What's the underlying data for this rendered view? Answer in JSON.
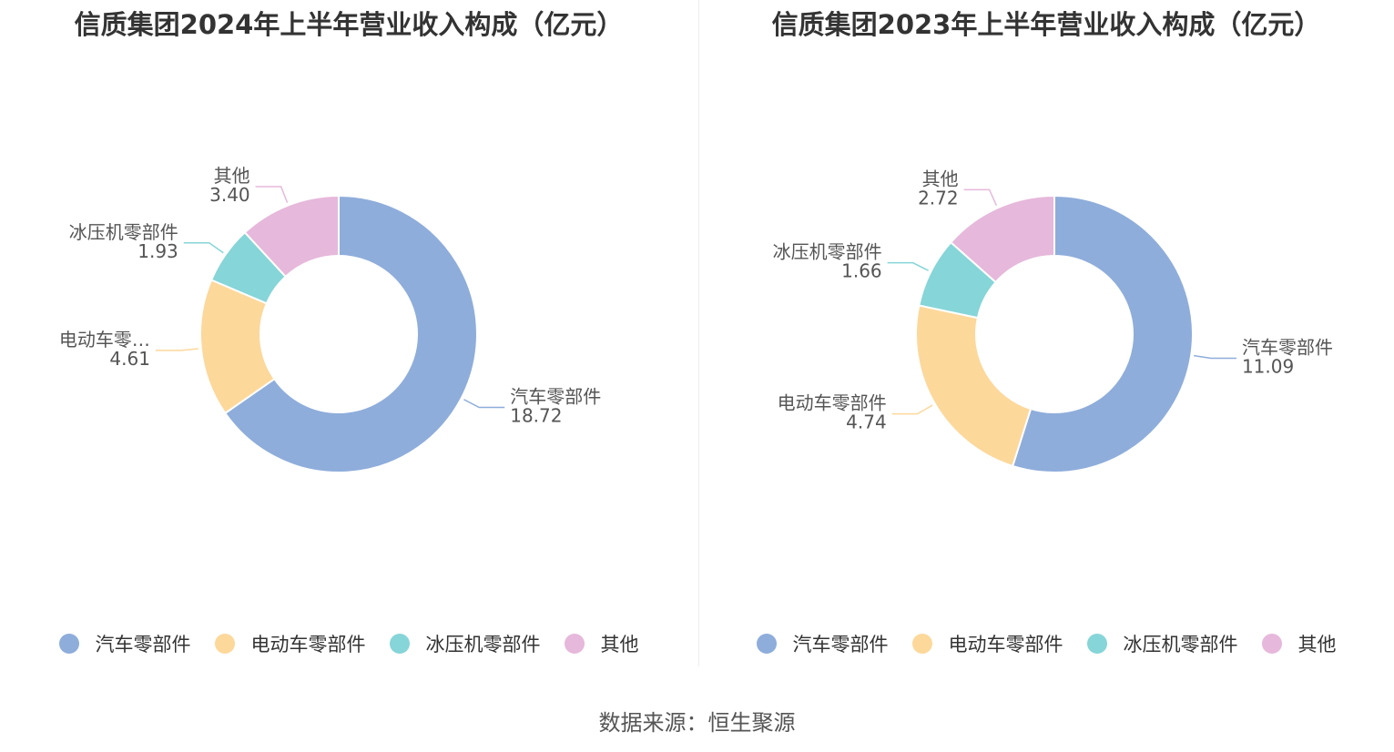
{
  "colors": [
    "#8eaddb",
    "#fdd89b",
    "#86d5d8",
    "#e6b8db"
  ],
  "source": "数据来源：恒生聚源",
  "chart_data": [
    {
      "type": "pie",
      "title": "信质集团2024年上半年营业收入构成（亿元）",
      "categories": [
        "汽车零部件",
        "电动车零部件",
        "冰压机零部件",
        "其他"
      ],
      "label_texts": [
        "汽车零部件",
        "电动车零…",
        "冰压机零部件",
        "其他"
      ],
      "values": [
        18.72,
        4.61,
        1.93,
        3.4
      ],
      "value_labels": [
        "18.72",
        "4.61",
        "1.93",
        "3.40"
      ],
      "legend_position": "bottom"
    },
    {
      "type": "pie",
      "title": "信质集团2023年上半年营业收入构成（亿元）",
      "categories": [
        "汽车零部件",
        "电动车零部件",
        "冰压机零部件",
        "其他"
      ],
      "label_texts": [
        "汽车零部件",
        "电动车零部件",
        "冰压机零部件",
        "其他"
      ],
      "values": [
        11.09,
        4.74,
        1.66,
        2.72
      ],
      "value_labels": [
        "11.09",
        "4.74",
        "1.66",
        "2.72"
      ],
      "legend_position": "bottom"
    }
  ]
}
